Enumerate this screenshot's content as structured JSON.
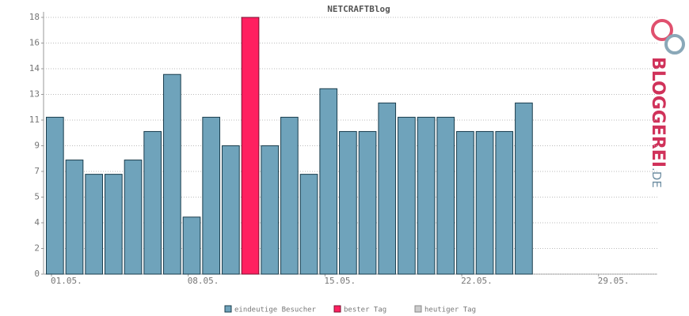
{
  "chart_data": {
    "type": "bar",
    "title": "NETCRAFTBlog",
    "categories": [
      "01.05.",
      null,
      null,
      null,
      null,
      null,
      null,
      "08.05.",
      null,
      null,
      null,
      null,
      null,
      null,
      "15.05.",
      null,
      null,
      null,
      null,
      null,
      null,
      "22.05.",
      null,
      null,
      null,
      null,
      null,
      null,
      "29.05.",
      null,
      null
    ],
    "series": [
      {
        "name": "eindeutige Besucher",
        "color": "#6fa3bb",
        "values": [
          11,
          8,
          7,
          7,
          8,
          10,
          14,
          4,
          11,
          9,
          null,
          9,
          11,
          7,
          13,
          10,
          10,
          12,
          11,
          11,
          11,
          10,
          10,
          10,
          12,
          null,
          null,
          null,
          null,
          null,
          null
        ]
      },
      {
        "name": "bester Tag",
        "color": "#ff2060",
        "values": [
          null,
          null,
          null,
          null,
          null,
          null,
          null,
          null,
          null,
          null,
          18,
          null,
          null,
          null,
          null,
          null,
          null,
          null,
          null,
          null,
          null,
          null,
          null,
          null,
          null,
          null,
          null,
          null,
          null,
          null,
          null
        ]
      },
      {
        "name": "heutiger Tag",
        "color": "#cccccc",
        "values": [
          null,
          null,
          null,
          null,
          null,
          null,
          null,
          null,
          null,
          null,
          null,
          null,
          null,
          null,
          null,
          null,
          null,
          null,
          null,
          null,
          null,
          null,
          null,
          null,
          null,
          null,
          null,
          null,
          null,
          null,
          null
        ]
      }
    ],
    "ylim": [
      0,
      18
    ],
    "yticks": [
      0,
      {
        "value": 1.8,
        "label": "2"
      },
      {
        "value": 3.6,
        "label": "4"
      },
      {
        "value": 5.4,
        "label": "5"
      },
      {
        "value": 7.2,
        "label": "7"
      },
      9,
      {
        "value": 10.8,
        "label": "11"
      },
      {
        "value": 12.6,
        "label": "13"
      },
      {
        "value": 14.4,
        "label": "14"
      },
      {
        "value": 16.2,
        "label": "16"
      },
      18
    ],
    "grid": true
  },
  "logo": {
    "name": "BLOGGEREI",
    "tld": ".DE"
  }
}
